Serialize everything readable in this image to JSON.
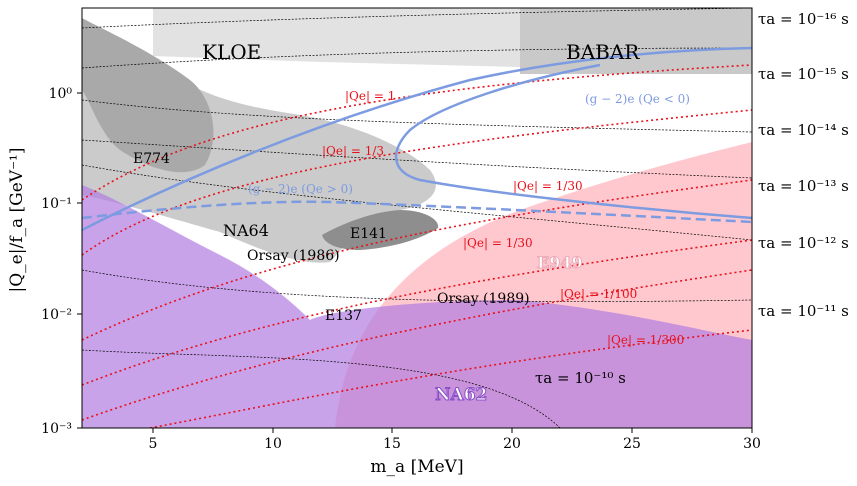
{
  "chart_data": {
    "type": "exclusion-plot",
    "xlabel": "m_a [MeV]",
    "ylabel": "|Q_e|/f_a [GeV⁻¹]",
    "xlim": [
      2,
      30
    ],
    "ylim": [
      0.001,
      5
    ],
    "yscale": "log",
    "xticks": [
      "5",
      "10",
      "15",
      "20",
      "25",
      "30"
    ],
    "yticks": [
      "10⁻³",
      "10⁻²",
      "10⁻¹",
      "10⁰"
    ],
    "lifetime_lines": [
      "τa = 10⁻¹⁶ s",
      "τa = 10⁻¹⁵ s",
      "τa = 10⁻¹⁴ s",
      "τa = 10⁻¹³ s",
      "τa = 10⁻¹² s",
      "τa = 10⁻¹¹ s",
      "τa = 10⁻¹⁰ s"
    ],
    "charge_lines": [
      "|Qe| = 1",
      "|Qe| = 1/3",
      "|Qe| = 1/30",
      "|Qe| = 1/30",
      "|Qe| = 1/100",
      "|Qe| = 1/300"
    ],
    "g2_labels": [
      "(g − 2)e (Qe < 0)",
      "(g − 2)e (Qe > 0)"
    ],
    "experiments": [
      "KLOE",
      "BABAR",
      "E774",
      "NA64",
      "E141",
      "Orsay (1986)",
      "Orsay (1989)",
      "E137",
      "E949",
      "NA62"
    ],
    "colors": {
      "kloe": "#e0e0e0",
      "babar": "#c8c8c8",
      "beam_dump": "#a8a8a8",
      "e949": "#ffc0cb",
      "na62": "#c77fe0",
      "g2": "#7d9be0",
      "qlines": "#e8101a"
    }
  }
}
